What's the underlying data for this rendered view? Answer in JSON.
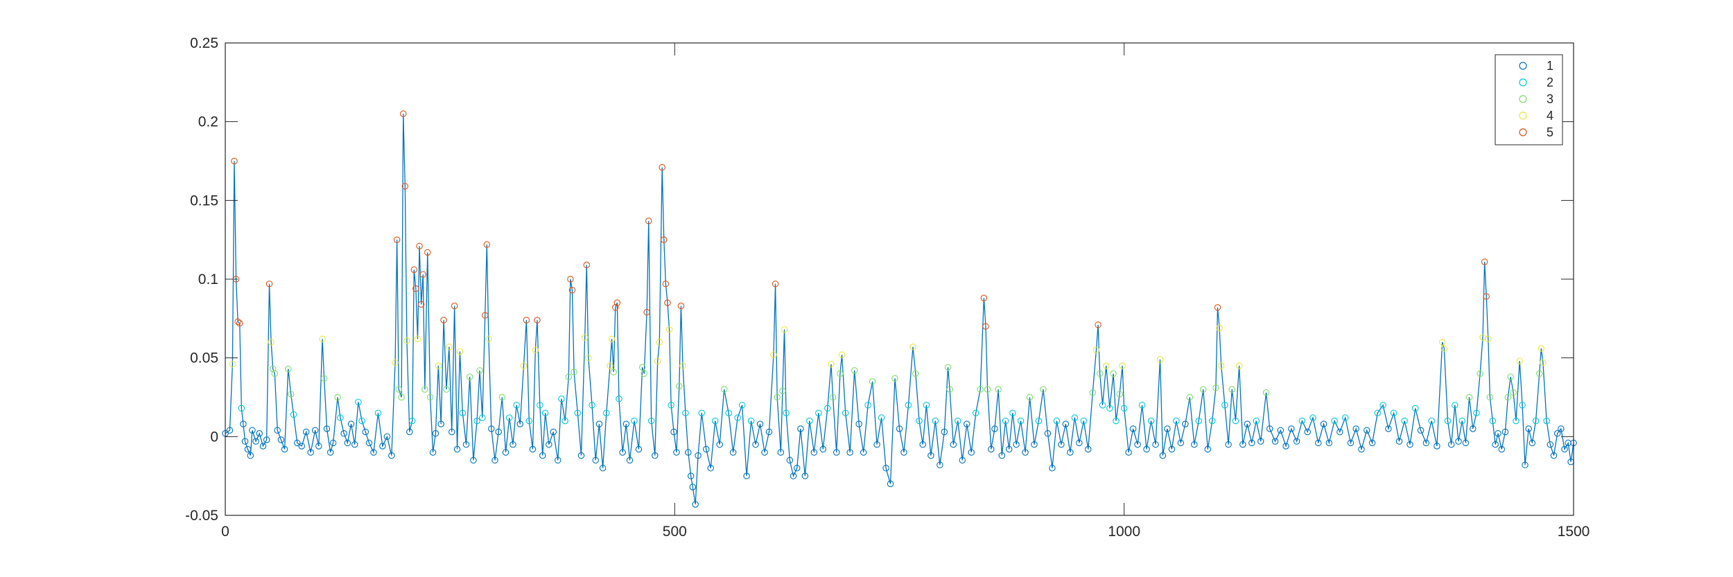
{
  "chart_data": {
    "type": "scatter",
    "title": "",
    "xlabel": "",
    "ylabel": "",
    "xlim": [
      0,
      1500
    ],
    "ylim": [
      -0.05,
      0.25
    ],
    "x_ticks": [
      0,
      500,
      1000,
      1500
    ],
    "x_tick_labels": [
      "0",
      "500",
      "1000",
      "1500"
    ],
    "y_ticks": [
      -0.05,
      0,
      0.05,
      0.1,
      0.15,
      0.2,
      0.25
    ],
    "y_tick_labels": [
      "-0.05",
      "0",
      "0.05",
      "0.1",
      "0.15",
      "0.2",
      "0.25"
    ],
    "grid": false,
    "legend_position": "top-right",
    "line_color": "#0072bd",
    "series": [
      {
        "name": "1",
        "color": "#0072bd"
      },
      {
        "name": "2",
        "color": "#00c8d8"
      },
      {
        "name": "3",
        "color": "#7ddb6a"
      },
      {
        "name": "4",
        "color": "#e8e63c"
      },
      {
        "name": "5",
        "color": "#d95319"
      }
    ],
    "points": [
      [
        0,
        0.002
      ],
      [
        5,
        0.004
      ],
      [
        8,
        0.046
      ],
      [
        10,
        0.175
      ],
      [
        12,
        0.1
      ],
      [
        14,
        0.073
      ],
      [
        16,
        0.072
      ],
      [
        18,
        0.018
      ],
      [
        20,
        0.008
      ],
      [
        22,
        -0.003
      ],
      [
        25,
        -0.008
      ],
      [
        28,
        -0.012
      ],
      [
        30,
        0.004
      ],
      [
        34,
        -0.003
      ],
      [
        38,
        0.002
      ],
      [
        42,
        -0.006
      ],
      [
        46,
        -0.002
      ],
      [
        49,
        0.097
      ],
      [
        51,
        0.06
      ],
      [
        53,
        0.043
      ],
      [
        55,
        0.04
      ],
      [
        58,
        0.004
      ],
      [
        62,
        -0.002
      ],
      [
        66,
        -0.008
      ],
      [
        70,
        0.043
      ],
      [
        73,
        0.027
      ],
      [
        76,
        0.014
      ],
      [
        80,
        -0.004
      ],
      [
        85,
        -0.006
      ],
      [
        90,
        0.003
      ],
      [
        95,
        -0.01
      ],
      [
        100,
        0.004
      ],
      [
        104,
        -0.006
      ],
      [
        108,
        0.062
      ],
      [
        110,
        0.037
      ],
      [
        113,
        0.005
      ],
      [
        117,
        -0.01
      ],
      [
        120,
        -0.004
      ],
      [
        125,
        0.025
      ],
      [
        128,
        0.012
      ],
      [
        132,
        0.002
      ],
      [
        136,
        -0.004
      ],
      [
        140,
        0.008
      ],
      [
        144,
        -0.005
      ],
      [
        148,
        0.022
      ],
      [
        152,
        0.01
      ],
      [
        156,
        0.003
      ],
      [
        160,
        -0.004
      ],
      [
        165,
        -0.01
      ],
      [
        170,
        0.015
      ],
      [
        175,
        -0.006
      ],
      [
        180,
        0.0
      ],
      [
        185,
        -0.012
      ],
      [
        189,
        0.047
      ],
      [
        191,
        0.125
      ],
      [
        193,
        0.03
      ],
      [
        196,
        0.025
      ],
      [
        198,
        0.205
      ],
      [
        200,
        0.159
      ],
      [
        202,
        0.061
      ],
      [
        205,
        0.003
      ],
      [
        208,
        0.01
      ],
      [
        210,
        0.106
      ],
      [
        212,
        0.094
      ],
      [
        214,
        0.062
      ],
      [
        216,
        0.121
      ],
      [
        218,
        0.084
      ],
      [
        220,
        0.103
      ],
      [
        222,
        0.03
      ],
      [
        225,
        0.117
      ],
      [
        228,
        0.025
      ],
      [
        231,
        -0.01
      ],
      [
        234,
        0.002
      ],
      [
        237,
        0.045
      ],
      [
        240,
        0.008
      ],
      [
        243,
        0.074
      ],
      [
        246,
        0.03
      ],
      [
        249,
        0.057
      ],
      [
        252,
        0.003
      ],
      [
        255,
        0.083
      ],
      [
        258,
        -0.008
      ],
      [
        261,
        0.054
      ],
      [
        264,
        0.015
      ],
      [
        268,
        -0.005
      ],
      [
        272,
        0.038
      ],
      [
        276,
        -0.015
      ],
      [
        280,
        0.01
      ],
      [
        283,
        0.042
      ],
      [
        286,
        0.012
      ],
      [
        289,
        0.077
      ],
      [
        291,
        0.122
      ],
      [
        293,
        0.062
      ],
      [
        296,
        0.005
      ],
      [
        300,
        -0.015
      ],
      [
        304,
        0.003
      ],
      [
        308,
        0.025
      ],
      [
        312,
        -0.01
      ],
      [
        316,
        0.012
      ],
      [
        320,
        -0.005
      ],
      [
        324,
        0.02
      ],
      [
        328,
        0.008
      ],
      [
        332,
        0.045
      ],
      [
        335,
        0.074
      ],
      [
        338,
        0.01
      ],
      [
        342,
        -0.008
      ],
      [
        345,
        0.055
      ],
      [
        347,
        0.074
      ],
      [
        350,
        0.02
      ],
      [
        353,
        -0.012
      ],
      [
        356,
        0.015
      ],
      [
        360,
        -0.005
      ],
      [
        365,
        0.003
      ],
      [
        370,
        -0.015
      ],
      [
        374,
        0.024
      ],
      [
        378,
        0.01
      ],
      [
        382,
        0.038
      ],
      [
        384,
        0.1
      ],
      [
        386,
        0.093
      ],
      [
        388,
        0.041
      ],
      [
        392,
        0.015
      ],
      [
        396,
        -0.012
      ],
      [
        400,
        0.063
      ],
      [
        402,
        0.109
      ],
      [
        404,
        0.05
      ],
      [
        408,
        0.02
      ],
      [
        412,
        -0.015
      ],
      [
        416,
        0.008
      ],
      [
        420,
        -0.02
      ],
      [
        424,
        0.015
      ],
      [
        428,
        0.045
      ],
      [
        430,
        0.062
      ],
      [
        432,
        0.041
      ],
      [
        434,
        0.082
      ],
      [
        436,
        0.085
      ],
      [
        438,
        0.024
      ],
      [
        442,
        -0.01
      ],
      [
        446,
        0.008
      ],
      [
        450,
        -0.015
      ],
      [
        455,
        0.01
      ],
      [
        460,
        -0.008
      ],
      [
        464,
        0.044
      ],
      [
        466,
        0.04
      ],
      [
        469,
        0.079
      ],
      [
        471,
        0.137
      ],
      [
        474,
        0.01
      ],
      [
        478,
        -0.012
      ],
      [
        481,
        0.048
      ],
      [
        483,
        0.06
      ],
      [
        486,
        0.171
      ],
      [
        488,
        0.125
      ],
      [
        490,
        0.097
      ],
      [
        492,
        0.085
      ],
      [
        494,
        0.068
      ],
      [
        496,
        0.02
      ],
      [
        499,
        0.003
      ],
      [
        502,
        -0.01
      ],
      [
        505,
        0.032
      ],
      [
        507,
        0.083
      ],
      [
        509,
        0.045
      ],
      [
        512,
        0.015
      ],
      [
        515,
        -0.01
      ],
      [
        518,
        -0.025
      ],
      [
        520,
        -0.032
      ],
      [
        523,
        -0.043
      ],
      [
        526,
        -0.012
      ],
      [
        530,
        0.015
      ],
      [
        535,
        -0.008
      ],
      [
        540,
        -0.02
      ],
      [
        545,
        0.01
      ],
      [
        550,
        -0.005
      ],
      [
        555,
        0.03
      ],
      [
        560,
        0.015
      ],
      [
        565,
        -0.01
      ],
      [
        570,
        0.012
      ],
      [
        575,
        0.02
      ],
      [
        580,
        -0.025
      ],
      [
        585,
        0.01
      ],
      [
        590,
        -0.005
      ],
      [
        595,
        0.008
      ],
      [
        600,
        -0.01
      ],
      [
        605,
        0.003
      ],
      [
        610,
        0.052
      ],
      [
        612,
        0.097
      ],
      [
        614,
        0.025
      ],
      [
        618,
        -0.01
      ],
      [
        620,
        0.029
      ],
      [
        622,
        0.068
      ],
      [
        624,
        0.015
      ],
      [
        628,
        -0.015
      ],
      [
        632,
        -0.025
      ],
      [
        636,
        -0.02
      ],
      [
        640,
        0.005
      ],
      [
        645,
        -0.025
      ],
      [
        650,
        0.01
      ],
      [
        655,
        -0.01
      ],
      [
        660,
        0.015
      ],
      [
        665,
        -0.008
      ],
      [
        670,
        0.018
      ],
      [
        674,
        0.046
      ],
      [
        676,
        0.025
      ],
      [
        680,
        -0.01
      ],
      [
        684,
        0.04
      ],
      [
        686,
        0.052
      ],
      [
        690,
        0.015
      ],
      [
        695,
        -0.01
      ],
      [
        700,
        0.042
      ],
      [
        705,
        0.008
      ],
      [
        710,
        -0.01
      ],
      [
        715,
        0.02
      ],
      [
        720,
        0.035
      ],
      [
        725,
        -0.005
      ],
      [
        730,
        0.012
      ],
      [
        735,
        -0.02
      ],
      [
        740,
        -0.03
      ],
      [
        745,
        0.037
      ],
      [
        750,
        0.005
      ],
      [
        755,
        -0.01
      ],
      [
        760,
        0.02
      ],
      [
        765,
        0.057
      ],
      [
        768,
        0.04
      ],
      [
        772,
        0.01
      ],
      [
        776,
        -0.005
      ],
      [
        780,
        0.02
      ],
      [
        785,
        -0.012
      ],
      [
        790,
        0.01
      ],
      [
        795,
        -0.018
      ],
      [
        800,
        0.003
      ],
      [
        804,
        0.044
      ],
      [
        806,
        0.03
      ],
      [
        810,
        -0.005
      ],
      [
        815,
        0.01
      ],
      [
        820,
        -0.015
      ],
      [
        825,
        0.008
      ],
      [
        830,
        -0.01
      ],
      [
        835,
        0.015
      ],
      [
        840,
        0.03
      ],
      [
        844,
        0.088
      ],
      [
        846,
        0.07
      ],
      [
        848,
        0.03
      ],
      [
        852,
        -0.008
      ],
      [
        856,
        0.005
      ],
      [
        860,
        0.03
      ],
      [
        864,
        -0.012
      ],
      [
        868,
        0.01
      ],
      [
        872,
        -0.008
      ],
      [
        876,
        0.015
      ],
      [
        880,
        -0.005
      ],
      [
        885,
        0.01
      ],
      [
        890,
        -0.01
      ],
      [
        895,
        0.025
      ],
      [
        900,
        -0.005
      ],
      [
        905,
        0.01
      ],
      [
        910,
        0.03
      ],
      [
        915,
        0.002
      ],
      [
        920,
        -0.02
      ],
      [
        925,
        0.01
      ],
      [
        930,
        -0.005
      ],
      [
        935,
        0.008
      ],
      [
        940,
        -0.01
      ],
      [
        945,
        0.012
      ],
      [
        950,
        -0.004
      ],
      [
        955,
        0.01
      ],
      [
        960,
        -0.008
      ],
      [
        965,
        0.028
      ],
      [
        969,
        0.055
      ],
      [
        971,
        0.071
      ],
      [
        973,
        0.04
      ],
      [
        976,
        0.02
      ],
      [
        980,
        0.045
      ],
      [
        984,
        0.018
      ],
      [
        988,
        0.04
      ],
      [
        991,
        0.01
      ],
      [
        995,
        0.027
      ],
      [
        998,
        0.045
      ],
      [
        1000,
        0.018
      ],
      [
        1005,
        -0.01
      ],
      [
        1010,
        0.005
      ],
      [
        1015,
        -0.005
      ],
      [
        1020,
        0.02
      ],
      [
        1025,
        -0.008
      ],
      [
        1030,
        0.01
      ],
      [
        1035,
        -0.005
      ],
      [
        1040,
        0.049
      ],
      [
        1043,
        -0.012
      ],
      [
        1048,
        0.005
      ],
      [
        1053,
        -0.008
      ],
      [
        1058,
        0.01
      ],
      [
        1063,
        -0.004
      ],
      [
        1068,
        0.008
      ],
      [
        1073,
        0.025
      ],
      [
        1078,
        -0.005
      ],
      [
        1083,
        0.01
      ],
      [
        1088,
        0.03
      ],
      [
        1093,
        -0.008
      ],
      [
        1098,
        0.01
      ],
      [
        1102,
        0.031
      ],
      [
        1104,
        0.082
      ],
      [
        1106,
        0.069
      ],
      [
        1108,
        0.045
      ],
      [
        1112,
        0.02
      ],
      [
        1116,
        -0.005
      ],
      [
        1120,
        0.03
      ],
      [
        1124,
        0.01
      ],
      [
        1128,
        0.045
      ],
      [
        1132,
        -0.005
      ],
      [
        1137,
        0.008
      ],
      [
        1142,
        -0.004
      ],
      [
        1147,
        0.01
      ],
      [
        1152,
        -0.003
      ],
      [
        1158,
        0.028
      ],
      [
        1162,
        0.005
      ],
      [
        1168,
        -0.003
      ],
      [
        1174,
        0.004
      ],
      [
        1180,
        -0.006
      ],
      [
        1186,
        0.005
      ],
      [
        1192,
        -0.003
      ],
      [
        1198,
        0.01
      ],
      [
        1204,
        0.003
      ],
      [
        1210,
        0.012
      ],
      [
        1216,
        -0.004
      ],
      [
        1222,
        0.008
      ],
      [
        1228,
        -0.004
      ],
      [
        1234,
        0.01
      ],
      [
        1240,
        0.003
      ],
      [
        1246,
        0.012
      ],
      [
        1252,
        -0.004
      ],
      [
        1258,
        0.005
      ],
      [
        1264,
        -0.008
      ],
      [
        1270,
        0.004
      ],
      [
        1276,
        -0.004
      ],
      [
        1282,
        0.015
      ],
      [
        1288,
        0.02
      ],
      [
        1294,
        0.005
      ],
      [
        1300,
        0.015
      ],
      [
        1306,
        -0.003
      ],
      [
        1312,
        0.01
      ],
      [
        1318,
        -0.005
      ],
      [
        1324,
        0.018
      ],
      [
        1330,
        0.004
      ],
      [
        1336,
        -0.004
      ],
      [
        1342,
        0.01
      ],
      [
        1348,
        -0.006
      ],
      [
        1354,
        0.06
      ],
      [
        1356,
        0.056
      ],
      [
        1360,
        0.01
      ],
      [
        1364,
        -0.005
      ],
      [
        1368,
        0.02
      ],
      [
        1372,
        -0.003
      ],
      [
        1376,
        0.01
      ],
      [
        1380,
        -0.004
      ],
      [
        1384,
        0.025
      ],
      [
        1388,
        0.005
      ],
      [
        1392,
        0.015
      ],
      [
        1396,
        0.04
      ],
      [
        1399,
        0.063
      ],
      [
        1401,
        0.111
      ],
      [
        1403,
        0.089
      ],
      [
        1405,
        0.062
      ],
      [
        1407,
        0.025
      ],
      [
        1410,
        0.01
      ],
      [
        1413,
        -0.005
      ],
      [
        1416,
        0.002
      ],
      [
        1420,
        -0.008
      ],
      [
        1424,
        0.003
      ],
      [
        1427,
        0.025
      ],
      [
        1430,
        0.038
      ],
      [
        1433,
        0.028
      ],
      [
        1436,
        0.01
      ],
      [
        1440,
        0.048
      ],
      [
        1443,
        0.02
      ],
      [
        1446,
        -0.018
      ],
      [
        1450,
        0.005
      ],
      [
        1454,
        -0.004
      ],
      [
        1458,
        0.01
      ],
      [
        1462,
        0.04
      ],
      [
        1464,
        0.056
      ],
      [
        1466,
        0.047
      ],
      [
        1470,
        0.01
      ],
      [
        1474,
        -0.005
      ],
      [
        1478,
        -0.012
      ],
      [
        1482,
        0.002
      ],
      [
        1486,
        0.005
      ],
      [
        1490,
        -0.008
      ],
      [
        1494,
        -0.004
      ],
      [
        1497,
        -0.016
      ],
      [
        1500,
        -0.004
      ]
    ]
  }
}
